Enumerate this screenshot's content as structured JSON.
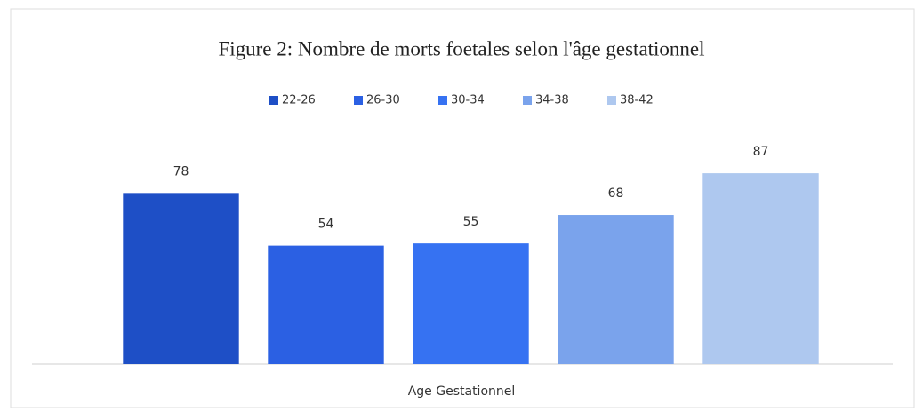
{
  "chart_data": {
    "type": "bar",
    "title": "Figure 2: Nombre de morts foetales selon l'âge gestationnel",
    "x_label": "Age Gestationnel",
    "series": [
      {
        "name": "22-26",
        "color": "#1e4fc6",
        "values": [
          78
        ]
      },
      {
        "name": "26-30",
        "color": "#2b60e3",
        "values": [
          54
        ]
      },
      {
        "name": "30-34",
        "color": "#3672f2",
        "values": [
          55
        ]
      },
      {
        "name": "34-38",
        "color": "#7aa3ec",
        "values": [
          68
        ]
      },
      {
        "name": "38-42",
        "color": "#aec8ef",
        "values": [
          87
        ]
      }
    ],
    "ylim": [
      0,
      100
    ],
    "legend": "top"
  }
}
